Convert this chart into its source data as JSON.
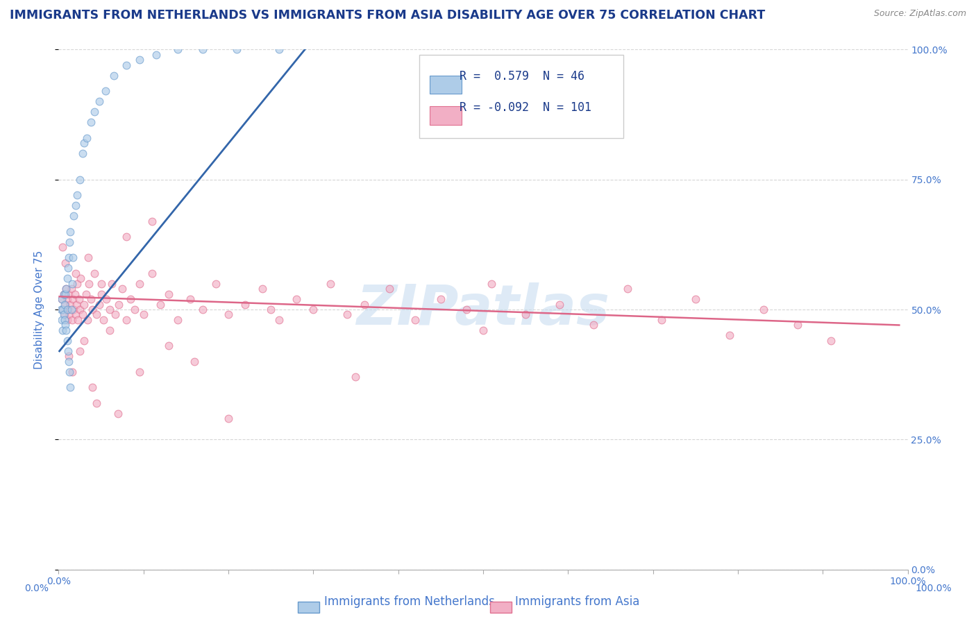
{
  "title": "IMMIGRANTS FROM NETHERLANDS VS IMMIGRANTS FROM ASIA DISABILITY AGE OVER 75 CORRELATION CHART",
  "source": "Source: ZipAtlas.com",
  "ylabel": "Disability Age Over 75",
  "xlim": [
    0.0,
    1.0
  ],
  "ylim": [
    0.0,
    1.0
  ],
  "xticks": [
    0.0,
    0.1,
    0.2,
    0.3,
    0.4,
    0.5,
    0.6,
    0.7,
    0.8,
    0.9,
    1.0
  ],
  "yticks": [
    0.0,
    0.25,
    0.5,
    0.75,
    1.0
  ],
  "xtick_labels": [
    "0.0%",
    "",
    "",
    "",
    "",
    "",
    "",
    "",
    "",
    "",
    "100.0%"
  ],
  "ytick_labels_right": [
    "0.0%",
    "25.0%",
    "50.0%",
    "75.0%",
    "100.0%"
  ],
  "legend_R1": "0.579",
  "legend_N1": "46",
  "legend_R2": "-0.092",
  "legend_N2": "101",
  "series1_label": "Immigrants from Netherlands",
  "series2_label": "Immigrants from Asia",
  "series1_color": "#aecce8",
  "series2_color": "#f2afc5",
  "series1_edge": "#6699cc",
  "series2_edge": "#e07090",
  "line1_color": "#3366aa",
  "line2_color": "#dd6688",
  "title_color": "#1a3a8a",
  "axis_color": "#4477cc",
  "legend_text_color": "#1a3a8a",
  "watermark": "ZIPatlas",
  "watermark_color": "#c8ddf0",
  "background_color": "#ffffff",
  "series1_x": [
    0.003,
    0.004,
    0.004,
    0.005,
    0.005,
    0.006,
    0.006,
    0.007,
    0.007,
    0.008,
    0.008,
    0.009,
    0.009,
    0.01,
    0.01,
    0.01,
    0.011,
    0.011,
    0.012,
    0.012,
    0.013,
    0.013,
    0.014,
    0.014,
    0.015,
    0.016,
    0.017,
    0.018,
    0.02,
    0.022,
    0.025,
    0.028,
    0.03,
    0.033,
    0.038,
    0.042,
    0.048,
    0.055,
    0.065,
    0.08,
    0.095,
    0.115,
    0.14,
    0.17,
    0.21,
    0.26
  ],
  "series1_y": [
    0.5,
    0.48,
    0.52,
    0.5,
    0.46,
    0.53,
    0.49,
    0.48,
    0.51,
    0.47,
    0.53,
    0.46,
    0.54,
    0.44,
    0.5,
    0.56,
    0.42,
    0.58,
    0.4,
    0.6,
    0.38,
    0.63,
    0.35,
    0.65,
    0.5,
    0.55,
    0.6,
    0.68,
    0.7,
    0.72,
    0.75,
    0.8,
    0.82,
    0.83,
    0.86,
    0.88,
    0.9,
    0.92,
    0.95,
    0.97,
    0.98,
    0.99,
    1.0,
    1.0,
    1.0,
    1.0
  ],
  "series2_x": [
    0.004,
    0.005,
    0.006,
    0.007,
    0.008,
    0.009,
    0.01,
    0.01,
    0.011,
    0.012,
    0.013,
    0.014,
    0.015,
    0.016,
    0.017,
    0.018,
    0.019,
    0.02,
    0.021,
    0.022,
    0.023,
    0.024,
    0.025,
    0.026,
    0.028,
    0.03,
    0.032,
    0.034,
    0.036,
    0.038,
    0.04,
    0.042,
    0.045,
    0.048,
    0.05,
    0.053,
    0.056,
    0.06,
    0.063,
    0.067,
    0.071,
    0.075,
    0.08,
    0.085,
    0.09,
    0.095,
    0.1,
    0.11,
    0.12,
    0.13,
    0.14,
    0.155,
    0.17,
    0.185,
    0.2,
    0.22,
    0.24,
    0.26,
    0.28,
    0.3,
    0.32,
    0.34,
    0.36,
    0.39,
    0.42,
    0.45,
    0.48,
    0.51,
    0.55,
    0.59,
    0.63,
    0.67,
    0.71,
    0.75,
    0.79,
    0.83,
    0.87,
    0.91,
    0.005,
    0.008,
    0.012,
    0.016,
    0.02,
    0.025,
    0.03,
    0.035,
    0.04,
    0.045,
    0.05,
    0.06,
    0.07,
    0.08,
    0.095,
    0.11,
    0.13,
    0.16,
    0.2,
    0.25,
    0.35,
    0.5
  ],
  "series2_y": [
    0.52,
    0.5,
    0.53,
    0.49,
    0.51,
    0.54,
    0.48,
    0.52,
    0.5,
    0.53,
    0.49,
    0.51,
    0.54,
    0.48,
    0.52,
    0.5,
    0.53,
    0.49,
    0.51,
    0.55,
    0.48,
    0.52,
    0.5,
    0.56,
    0.49,
    0.51,
    0.53,
    0.48,
    0.55,
    0.52,
    0.5,
    0.57,
    0.49,
    0.51,
    0.53,
    0.48,
    0.52,
    0.5,
    0.55,
    0.49,
    0.51,
    0.54,
    0.48,
    0.52,
    0.5,
    0.55,
    0.49,
    0.57,
    0.51,
    0.53,
    0.48,
    0.52,
    0.5,
    0.55,
    0.49,
    0.51,
    0.54,
    0.48,
    0.52,
    0.5,
    0.55,
    0.49,
    0.51,
    0.54,
    0.48,
    0.52,
    0.5,
    0.55,
    0.49,
    0.51,
    0.47,
    0.54,
    0.48,
    0.52,
    0.45,
    0.5,
    0.47,
    0.44,
    0.62,
    0.59,
    0.41,
    0.38,
    0.57,
    0.42,
    0.44,
    0.6,
    0.35,
    0.32,
    0.55,
    0.46,
    0.3,
    0.64,
    0.38,
    0.67,
    0.43,
    0.4,
    0.29,
    0.5,
    0.37,
    0.46
  ],
  "line1_x": [
    0.001,
    0.3
  ],
  "line1_y_start": 0.42,
  "line1_y_end": 1.02,
  "line2_x": [
    0.001,
    0.99
  ],
  "line2_y_start": 0.525,
  "line2_y_end": 0.47,
  "marker_size": 60,
  "marker_alpha": 0.65,
  "title_fontsize": 12.5,
  "label_fontsize": 11,
  "tick_fontsize": 10,
  "legend_fontsize": 12
}
